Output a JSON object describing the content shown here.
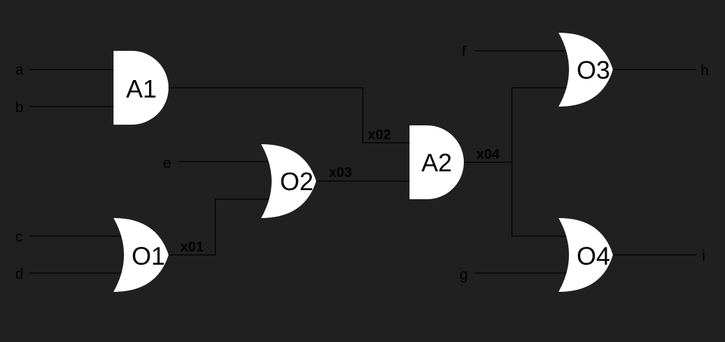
{
  "colors": {
    "background": "#202020",
    "gate_fill": "#ffffff",
    "wire": "#000000",
    "text": "#000000"
  },
  "inputs": {
    "a": "a",
    "b": "b",
    "c": "c",
    "d": "d",
    "e": "e",
    "f": "f",
    "g": "g"
  },
  "outputs": {
    "h": "h",
    "i": "i"
  },
  "gates": {
    "A1": {
      "label": "A1",
      "type": "and"
    },
    "A2": {
      "label": "A2",
      "type": "and"
    },
    "O1": {
      "label": "O1",
      "type": "or"
    },
    "O2": {
      "label": "O2",
      "type": "or"
    },
    "O3": {
      "label": "O3",
      "type": "or"
    },
    "O4": {
      "label": "O4",
      "type": "or"
    }
  },
  "signals": {
    "x01": "x01",
    "x02": "x02",
    "x03": "x03",
    "x04": "x04"
  }
}
